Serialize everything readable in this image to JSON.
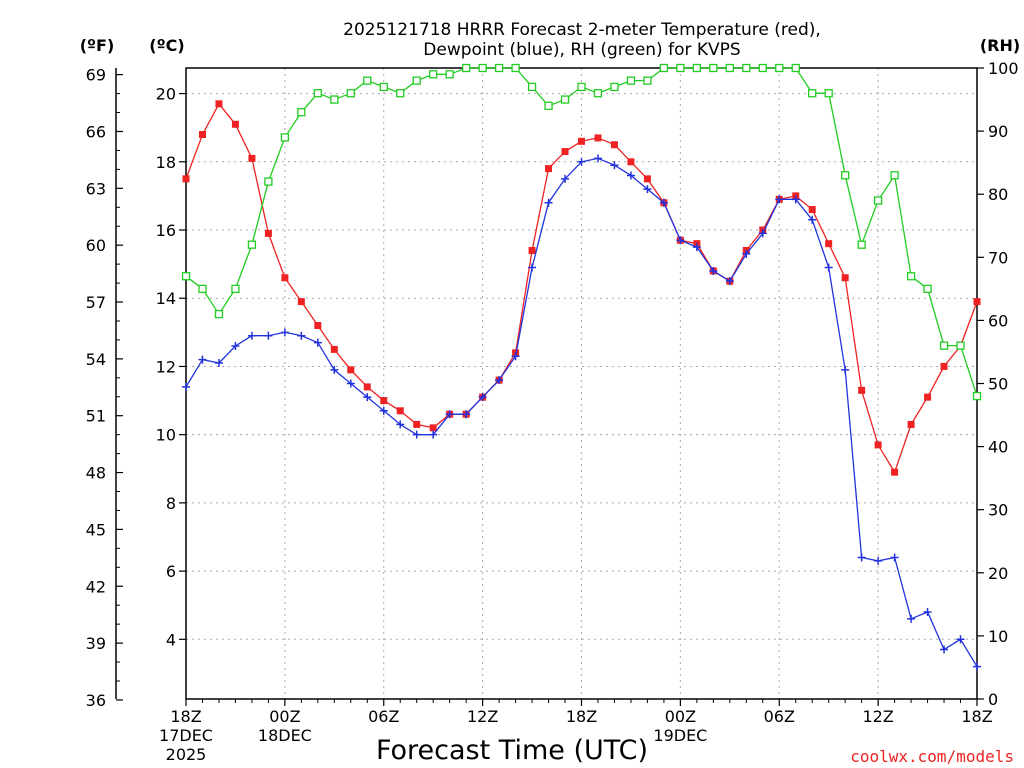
{
  "chart_data": {
    "type": "line",
    "title_line1": "2025121718 HRRR Forecast 2-meter Temperature (red),",
    "title_line2": "Dewpoint (blue), RH (green) for KVPS",
    "xlabel": "Forecast Time (UTC)",
    "unit_left_f": "(ºF)",
    "unit_left_c": "(ºC)",
    "unit_right": "(RH)",
    "credit": "coolwx.com/models",
    "x_hours_range": [
      0,
      48
    ],
    "y_c_range": [
      2.25,
      20.75
    ],
    "y_rh_range": [
      0,
      100
    ],
    "grid": true,
    "x_ticks": [
      {
        "h": 0,
        "lines": [
          "18Z",
          "17DEC",
          "2025"
        ]
      },
      {
        "h": 6,
        "lines": [
          "00Z",
          "18DEC"
        ]
      },
      {
        "h": 12,
        "lines": [
          "06Z"
        ]
      },
      {
        "h": 18,
        "lines": [
          "12Z"
        ]
      },
      {
        "h": 24,
        "lines": [
          "18Z"
        ]
      },
      {
        "h": 30,
        "lines": [
          "00Z",
          "19DEC"
        ]
      },
      {
        "h": 36,
        "lines": [
          "06Z"
        ]
      },
      {
        "h": 42,
        "lines": [
          "12Z"
        ]
      },
      {
        "h": 48,
        "lines": [
          "18Z"
        ]
      }
    ],
    "c_ticks": [
      4,
      6,
      8,
      10,
      12,
      14,
      16,
      18,
      20
    ],
    "f_ticks": [
      36,
      39,
      42,
      45,
      48,
      51,
      54,
      57,
      60,
      63,
      66,
      69
    ],
    "rh_ticks": [
      0,
      10,
      20,
      30,
      40,
      50,
      60,
      70,
      80,
      90,
      100
    ],
    "series": [
      {
        "name": "Temperature",
        "axis": "c",
        "color": "#ee2222",
        "marker": "filled-square",
        "values": [
          17.5,
          18.8,
          19.7,
          19.1,
          18.1,
          15.9,
          14.6,
          13.9,
          13.2,
          12.5,
          11.9,
          11.4,
          11.0,
          10.7,
          10.3,
          10.2,
          10.6,
          10.6,
          11.1,
          11.6,
          12.4,
          15.4,
          17.8,
          18.3,
          18.6,
          18.7,
          18.5,
          18.0,
          17.5,
          16.8,
          15.7,
          15.6,
          14.8,
          14.5,
          15.4,
          16.0,
          16.9,
          17.0,
          16.6,
          15.6,
          14.6,
          11.3,
          9.7,
          8.9,
          10.3,
          11.1,
          12.0,
          12.6,
          13.9
        ]
      },
      {
        "name": "Dewpoint",
        "axis": "c",
        "color": "#2233dd",
        "marker": "plus",
        "values": [
          11.4,
          12.2,
          12.1,
          12.6,
          12.9,
          12.9,
          13.0,
          12.9,
          12.7,
          11.9,
          11.5,
          11.1,
          10.7,
          10.3,
          10.0,
          10.0,
          10.6,
          10.6,
          11.1,
          11.6,
          12.3,
          14.9,
          16.8,
          17.5,
          18.0,
          18.1,
          17.9,
          17.6,
          17.2,
          16.8,
          15.7,
          15.5,
          14.8,
          14.5,
          15.3,
          15.9,
          16.9,
          16.9,
          16.3,
          14.9,
          11.9,
          6.4,
          6.3,
          6.4,
          4.6,
          4.8,
          3.7,
          4.0,
          3.2
        ]
      },
      {
        "name": "RH",
        "axis": "rh",
        "color": "#22cc22",
        "marker": "open-square",
        "values": [
          67,
          65,
          61,
          65,
          72,
          82,
          89,
          93,
          96,
          95,
          96,
          98,
          97,
          96,
          98,
          99,
          99,
          100,
          100,
          100,
          100,
          97,
          94,
          95,
          97,
          96,
          97,
          98,
          98,
          100,
          100,
          100,
          100,
          100,
          100,
          100,
          100,
          100,
          96,
          96,
          83,
          72,
          79,
          83,
          67,
          65,
          56,
          56,
          48
        ]
      }
    ]
  }
}
